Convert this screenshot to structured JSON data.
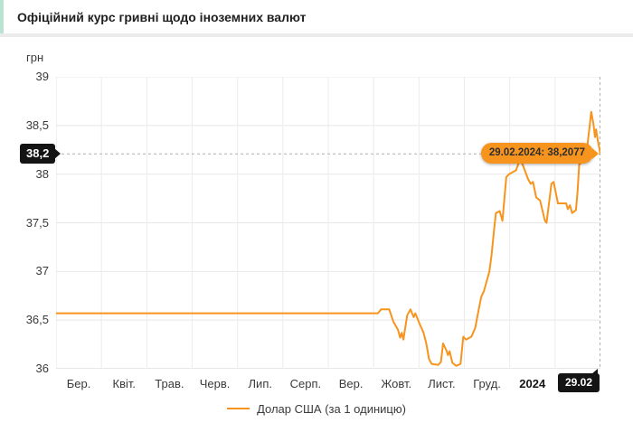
{
  "header": {
    "title": "Офіційний курс гривні щодо іноземних валют"
  },
  "chart_data": {
    "type": "line",
    "title": "Офіційний курс гривні щодо іноземних валют",
    "ylabel": "грн",
    "ylim": [
      36,
      39
    ],
    "grid": true,
    "legend_position": "bottom",
    "y_ticks": [
      {
        "value": 39,
        "label": "39"
      },
      {
        "value": 38.5,
        "label": "38,5"
      },
      {
        "value": 38,
        "label": "38"
      },
      {
        "value": 37.5,
        "label": "37,5"
      },
      {
        "value": 37,
        "label": "37"
      },
      {
        "value": 36.5,
        "label": "36,5"
      },
      {
        "value": 36,
        "label": "36"
      }
    ],
    "x_intervals": 12,
    "x_ticks": [
      {
        "label": "Бер.",
        "bold": false
      },
      {
        "label": "Квіт.",
        "bold": false
      },
      {
        "label": "Трав.",
        "bold": false
      },
      {
        "label": "Черв.",
        "bold": false
      },
      {
        "label": "Лип.",
        "bold": false
      },
      {
        "label": "Серп.",
        "bold": false
      },
      {
        "label": "Вер.",
        "bold": false
      },
      {
        "label": "Жовт.",
        "bold": false
      },
      {
        "label": "Лист.",
        "bold": false
      },
      {
        "label": "Груд.",
        "bold": false
      },
      {
        "label": "2024",
        "bold": true
      }
    ],
    "end_badge": "29.02",
    "current_marker": {
      "label": "38,2",
      "value": 38.2077
    },
    "tooltip": "29.02.2024: 38,2077",
    "series": [
      {
        "name": "Долар США (за 1 одиницю)",
        "color": "#f7941e",
        "points": [
          [
            0,
            36.57
          ],
          [
            0.591,
            36.57
          ],
          [
            0.597,
            36.61
          ],
          [
            0.612,
            36.61
          ],
          [
            0.62,
            36.48
          ],
          [
            0.628,
            36.4
          ],
          [
            0.632,
            36.32
          ],
          [
            0.635,
            36.37
          ],
          [
            0.638,
            36.3
          ],
          [
            0.645,
            36.55
          ],
          [
            0.651,
            36.61
          ],
          [
            0.657,
            36.53
          ],
          [
            0.66,
            36.57
          ],
          [
            0.668,
            36.46
          ],
          [
            0.675,
            36.37
          ],
          [
            0.68,
            36.26
          ],
          [
            0.685,
            36.1
          ],
          [
            0.69,
            36.05
          ],
          [
            0.702,
            36.04
          ],
          [
            0.707,
            36.07
          ],
          [
            0.711,
            36.26
          ],
          [
            0.717,
            36.19
          ],
          [
            0.72,
            36.14
          ],
          [
            0.723,
            36.18
          ],
          [
            0.728,
            36.06
          ],
          [
            0.735,
            36.03
          ],
          [
            0.743,
            36.05
          ],
          [
            0.748,
            36.33
          ],
          [
            0.753,
            36.3
          ],
          [
            0.763,
            36.33
          ],
          [
            0.77,
            36.42
          ],
          [
            0.776,
            36.6
          ],
          [
            0.781,
            36.74
          ],
          [
            0.786,
            36.8
          ],
          [
            0.791,
            36.9
          ],
          [
            0.796,
            37
          ],
          [
            0.8,
            37.17
          ],
          [
            0.805,
            37.45
          ],
          [
            0.808,
            37.6
          ],
          [
            0.815,
            37.62
          ],
          [
            0.82,
            37.52
          ],
          [
            0.827,
            37.97
          ],
          [
            0.832,
            38
          ],
          [
            0.845,
            38.04
          ],
          [
            0.852,
            38.15
          ],
          [
            0.857,
            38.1
          ],
          [
            0.867,
            37.95
          ],
          [
            0.872,
            37.9
          ],
          [
            0.876,
            37.92
          ],
          [
            0.882,
            37.76
          ],
          [
            0.889,
            37.73
          ],
          [
            0.898,
            37.52
          ],
          [
            0.901,
            37.5
          ],
          [
            0.91,
            37.9
          ],
          [
            0.914,
            37.92
          ],
          [
            0.922,
            37.7
          ],
          [
            0.937,
            37.7
          ],
          [
            0.94,
            37.64
          ],
          [
            0.944,
            37.68
          ],
          [
            0.948,
            37.6
          ],
          [
            0.955,
            37.63
          ],
          [
            0.958,
            37.82
          ],
          [
            0.961,
            38.1
          ],
          [
            0.966,
            38.12
          ],
          [
            0.975,
            38.24
          ],
          [
            0.98,
            38.49
          ],
          [
            0.983,
            38.64
          ],
          [
            0.987,
            38.52
          ],
          [
            0.99,
            38.38
          ],
          [
            0.992,
            38.46
          ],
          [
            0.995,
            38.35
          ],
          [
            1,
            38.2077
          ]
        ]
      }
    ]
  },
  "colors": {
    "accent": "#bce3d2",
    "line": "#f7941e",
    "grid_h": "#e8e8e8",
    "grid_v": "#ececec",
    "axis": "#cfcfcf",
    "plot_border": "#e3e3e3",
    "dashed": "#b0b0b0",
    "badge_bg": "#141414",
    "badge_text": "#ffffff",
    "tooltip_bg": "#f7941e",
    "tooltip_text": "#2f2f2f"
  }
}
